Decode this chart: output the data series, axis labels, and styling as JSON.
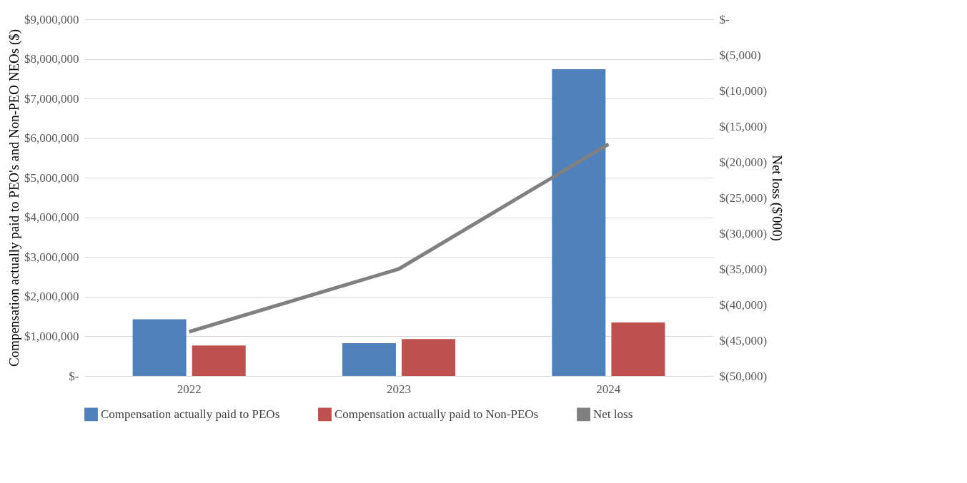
{
  "chart_data": {
    "type": "bar",
    "categories": [
      "2022",
      "2023",
      "2024"
    ],
    "ylabel": "Compensation actually paid to PEO's and Non-PEO NEOs ($)",
    "y2label": "Net loss ($'000)",
    "series": [
      {
        "name": "Compensation actually paid to PEOs",
        "color": "#4f81bd",
        "values": [
          1430000,
          830000,
          7740000
        ]
      },
      {
        "name": "Compensation actually paid to Non-PEOs",
        "color": "#c0504d",
        "values": [
          770000,
          930000,
          1350000
        ]
      },
      {
        "name": "Net loss",
        "color": "#808080",
        "type": "line",
        "axis": "y2",
        "values": [
          -43800,
          -35000,
          -17500
        ]
      }
    ],
    "ylim": [
      0,
      9000000
    ],
    "yticks": [
      {
        "value": 0,
        "label": "$-"
      },
      {
        "value": 1000000,
        "label": "$1,000,000"
      },
      {
        "value": 2000000,
        "label": "$2,000,000"
      },
      {
        "value": 3000000,
        "label": "$3,000,000"
      },
      {
        "value": 4000000,
        "label": "$4,000,000"
      },
      {
        "value": 5000000,
        "label": "$5,000,000"
      },
      {
        "value": 6000000,
        "label": "$6,000,000"
      },
      {
        "value": 7000000,
        "label": "$7,000,000"
      },
      {
        "value": 8000000,
        "label": "$8,000,000"
      },
      {
        "value": 9000000,
        "label": "$9,000,000"
      }
    ],
    "y2lim": [
      -50000,
      0
    ],
    "y2ticks": [
      {
        "value": -50000,
        "label": "$(50,000)"
      },
      {
        "value": -45000,
        "label": "$(45,000)"
      },
      {
        "value": -40000,
        "label": "$(40,000)"
      },
      {
        "value": -35000,
        "label": "$(35,000)"
      },
      {
        "value": -30000,
        "label": "$(30,000)"
      },
      {
        "value": -25000,
        "label": "$(25,000)"
      },
      {
        "value": -20000,
        "label": "$(20,000)"
      },
      {
        "value": -15000,
        "label": "$(15,000)"
      },
      {
        "value": -10000,
        "label": "$(10,000)"
      },
      {
        "value": -5000,
        "label": "$(5,000)"
      },
      {
        "value": 0,
        "label": "$-"
      }
    ],
    "grid": "y",
    "legend": "bottom",
    "marker": "none",
    "line_style": "solid"
  }
}
